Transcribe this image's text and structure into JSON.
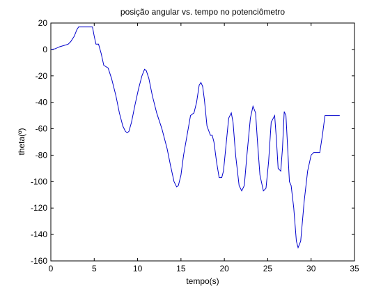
{
  "chart_data": {
    "type": "line",
    "title": "posição angular vs. tempo no potenciômetro",
    "xlabel": "tempo(s)",
    "ylabel": "theta(º)",
    "xlim": [
      0,
      35
    ],
    "ylim": [
      -160,
      20
    ],
    "xticks": [
      0,
      5,
      10,
      15,
      20,
      25,
      30,
      35
    ],
    "yticks": [
      20,
      0,
      -20,
      -40,
      -60,
      -80,
      -100,
      -120,
      -140,
      -160
    ],
    "grid": false,
    "series_color": "#0000cc",
    "series": [
      {
        "x": [
          0,
          0.5,
          1,
          1.5,
          2,
          2.3,
          2.7,
          3.0,
          3.2,
          3.5,
          4.0,
          4.5,
          4.8,
          5.0,
          5.2,
          5.5,
          5.8,
          6.1,
          6.6,
          7.0,
          7.5,
          7.9,
          8.3,
          8.6,
          8.8,
          9.0,
          9.3,
          9.7,
          10.1,
          10.5,
          10.8,
          11.0,
          11.3,
          11.7,
          12.2,
          12.8,
          13.4,
          13.8,
          14.2,
          14.5,
          14.7,
          15.0,
          15.3,
          15.7,
          16.1,
          16.5,
          16.8,
          17.1,
          17.3,
          17.5,
          17.7,
          18.0,
          18.4,
          18.6,
          18.8,
          19.1,
          19.4,
          19.7,
          19.9,
          20.2,
          20.5,
          20.8,
          21.0,
          21.3,
          21.7,
          22.0,
          22.3,
          22.6,
          23.0,
          23.3,
          23.6,
          23.8,
          24.1,
          24.5,
          24.8,
          25.1,
          25.4,
          25.8,
          26.0,
          26.2,
          26.5,
          26.7,
          26.9,
          27.1,
          27.3,
          27.5,
          27.7,
          28.0,
          28.3,
          28.5,
          28.8,
          29.2,
          29.6,
          30.0,
          30.3,
          30.6,
          31.0,
          31.3,
          31.6,
          32.0,
          32.5,
          33.0,
          33.3
        ],
        "y": [
          0,
          0.5,
          2,
          3,
          4,
          6,
          10,
          15,
          17,
          17,
          17,
          17,
          17,
          10,
          4,
          4,
          -3,
          -12,
          -14,
          -22,
          -35,
          -48,
          -58,
          -62,
          -63,
          -62,
          -55,
          -42,
          -30,
          -20,
          -15,
          -16,
          -22,
          -35,
          -48,
          -60,
          -75,
          -88,
          -100,
          -104,
          -103,
          -95,
          -80,
          -65,
          -50,
          -48,
          -40,
          -27,
          -25,
          -28,
          -38,
          -58,
          -65,
          -65,
          -70,
          -85,
          -97,
          -97,
          -92,
          -72,
          -52,
          -48,
          -55,
          -80,
          -103,
          -107,
          -103,
          -80,
          -52,
          -43,
          -48,
          -68,
          -95,
          -107,
          -105,
          -85,
          -55,
          -50,
          -68,
          -90,
          -92,
          -75,
          -47,
          -50,
          -75,
          -100,
          -103,
          -120,
          -145,
          -150,
          -145,
          -115,
          -92,
          -80,
          -78,
          -78,
          -78,
          -65,
          -50,
          -50,
          -50,
          -50,
          -50
        ]
      }
    ]
  }
}
